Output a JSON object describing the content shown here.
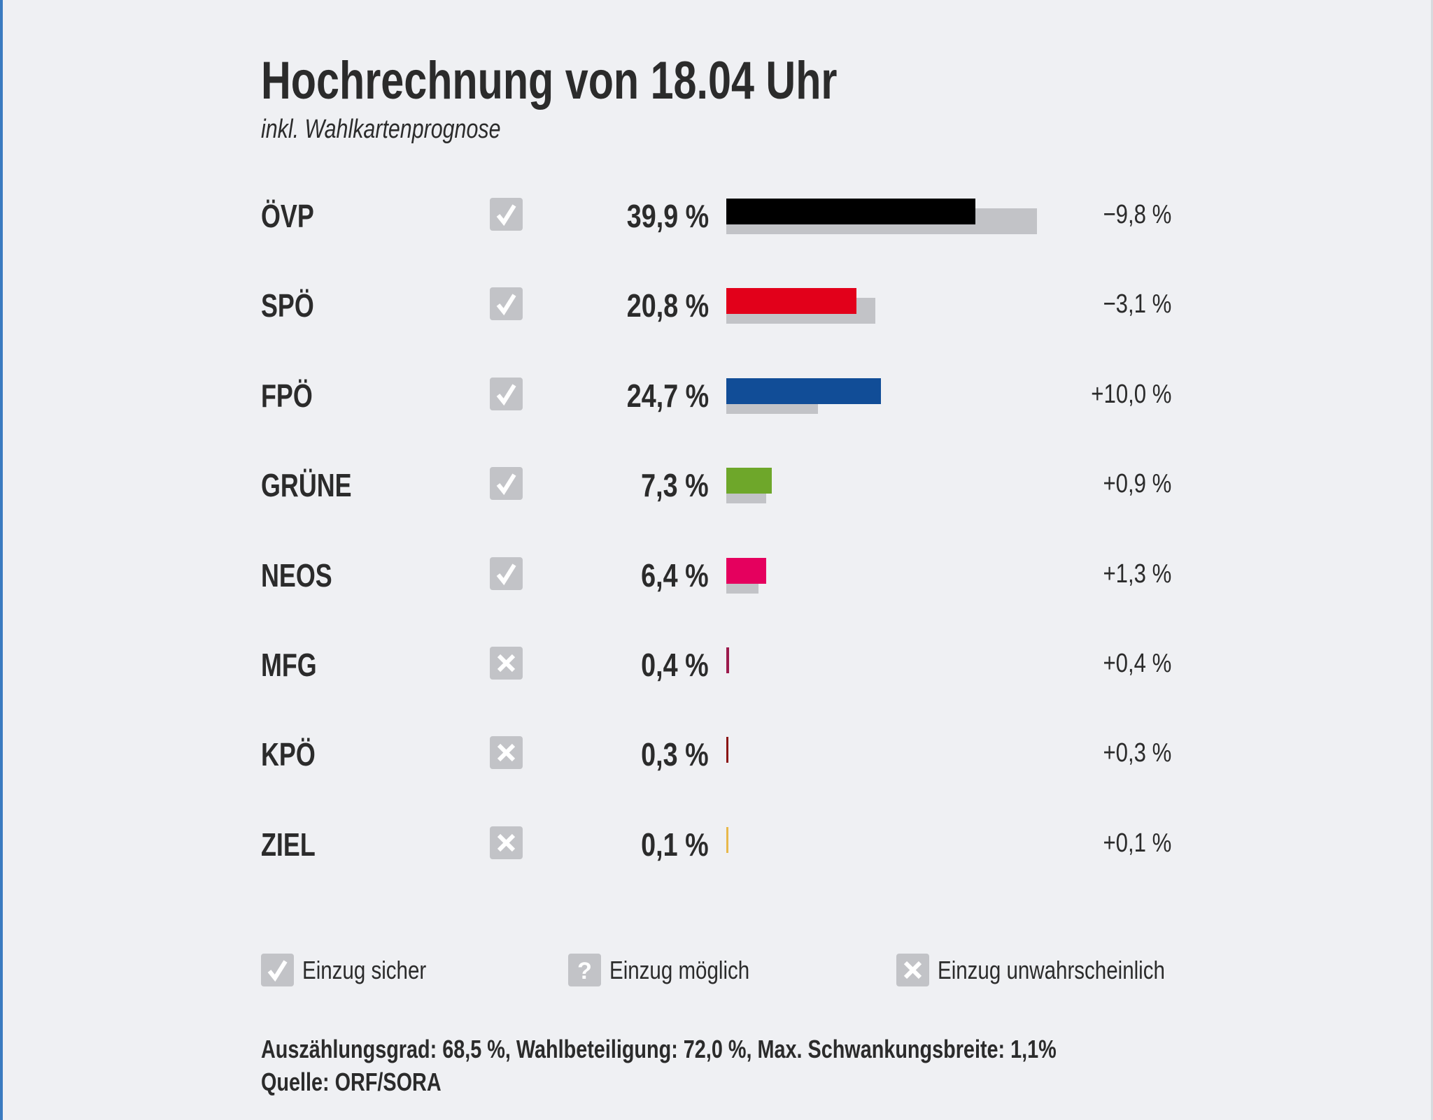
{
  "header": {
    "title": "Hochrechnung von 18.04 Uhr",
    "subtitle": "inkl. Wahlkartenprognose"
  },
  "chart_data": {
    "type": "bar",
    "orientation": "horizontal",
    "categories": [
      "ÖVP",
      "SPÖ",
      "FPÖ",
      "GRÜNE",
      "NEOS",
      "MFG",
      "KPÖ",
      "ZIEL"
    ],
    "series": [
      {
        "values": [
          39.9,
          20.8,
          24.7,
          7.3,
          6.4,
          0.4,
          0.3,
          0.1
        ]
      },
      {
        "values": [
          49.7,
          23.9,
          14.7,
          6.4,
          5.1,
          0,
          0,
          0
        ],
        "color": "#c2c3c7"
      }
    ],
    "value_labels": [
      "39,9 %",
      "20,8 %",
      "24,7 %",
      "7,3 %",
      "6,4 %",
      "0,4 %",
      "0,3 %",
      "0,1 %"
    ],
    "change_labels": [
      "−9,8 %",
      "−3,1 %",
      "+10,0 %",
      "+0,9 %",
      "+1,3 %",
      "+0,4 %",
      "+0,3 %",
      "+0,1 %"
    ],
    "colors": [
      "#000000",
      "#e2001a",
      "#114d97",
      "#6ea72a",
      "#e5005e",
      "#9b1a4c",
      "#8a1414",
      "#e8b84a"
    ],
    "status": [
      "sicher",
      "sicher",
      "sicher",
      "sicher",
      "sicher",
      "unwahrscheinlich",
      "unwahrscheinlich",
      "unwahrscheinlich"
    ],
    "xlim": [
      0,
      50
    ],
    "grid": false
  },
  "legend": [
    {
      "icon": "check-icon",
      "label": "Einzug sicher"
    },
    {
      "icon": "question-icon",
      "label": "Einzug möglich"
    },
    {
      "icon": "cross-icon",
      "label": "Einzug unwahrscheinlich"
    }
  ],
  "footer": {
    "stats": "Auszählungsgrad: 68,5 %, Wahlbeteiligung: 72,0 %, Max. Schwankungsbreite: 1,1%",
    "source": "Quelle: ORF/SORA"
  }
}
